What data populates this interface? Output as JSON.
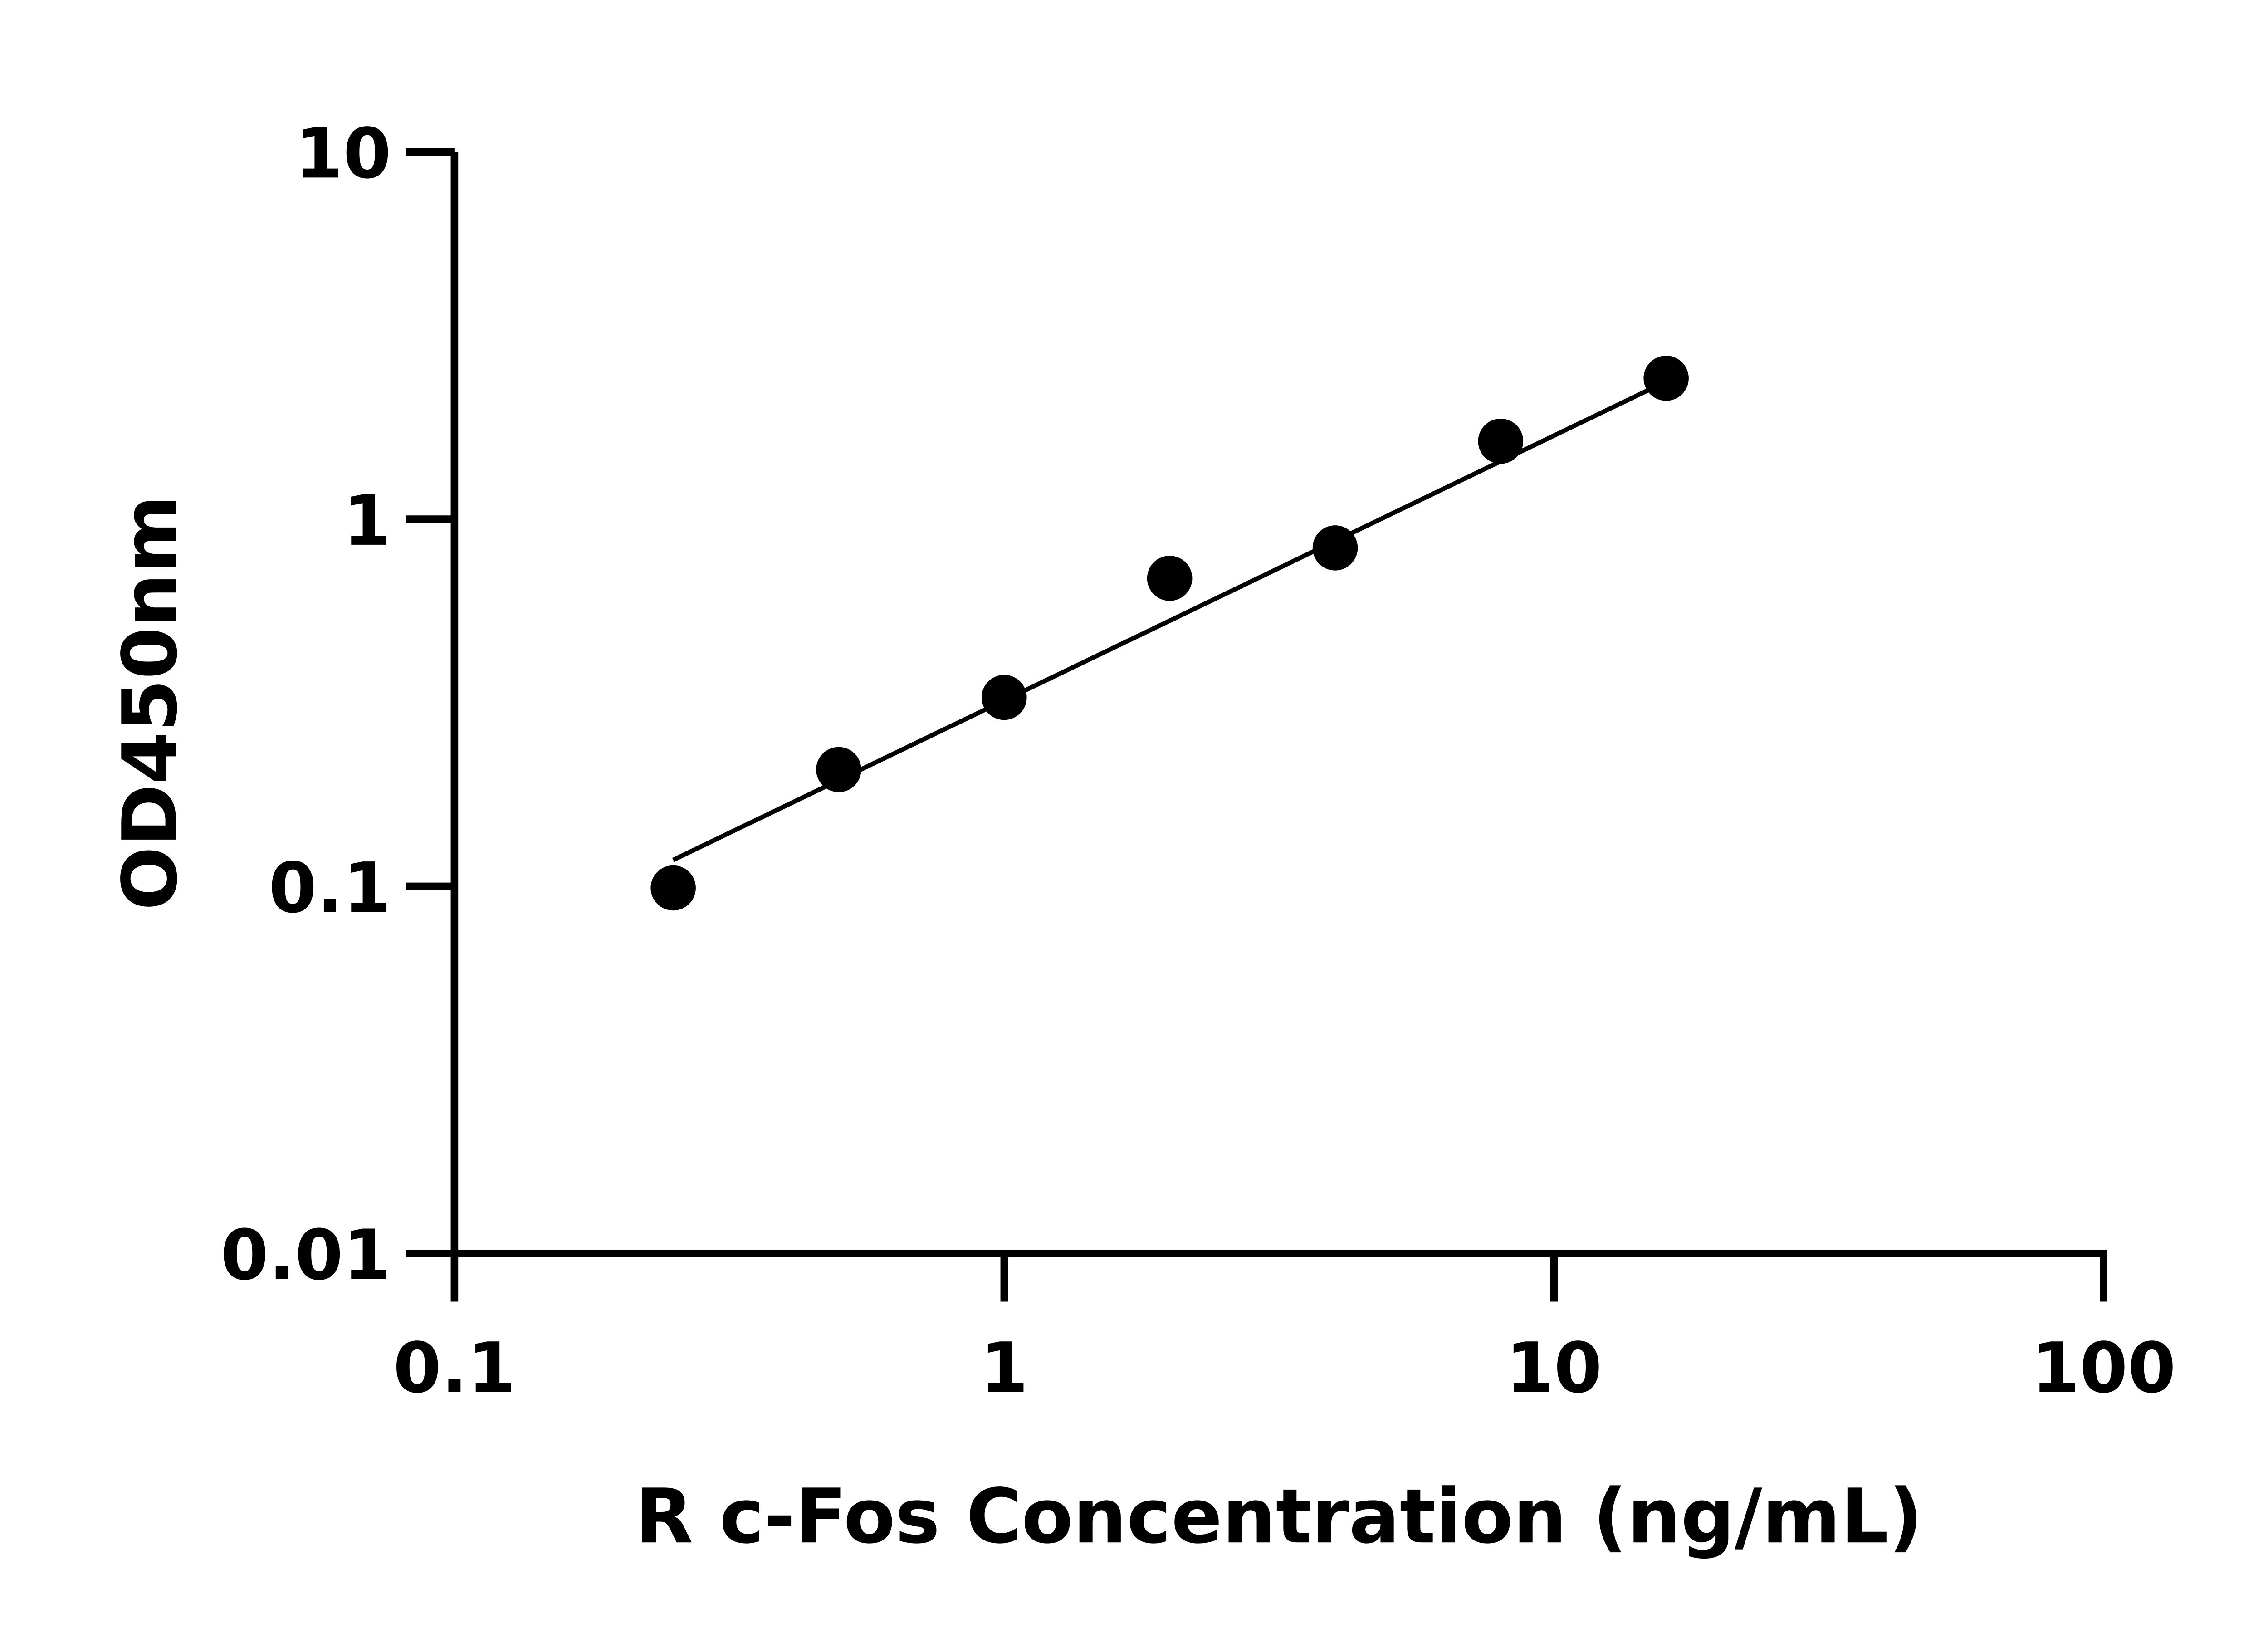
{
  "chart_data": {
    "type": "scatter",
    "title": "",
    "xlabel": "R c-Fos Concentration (ng/mL)",
    "ylabel": "OD450nm",
    "x_scale": "log",
    "y_scale": "log",
    "xlim": [
      0.1,
      100
    ],
    "ylim": [
      0.01,
      10
    ],
    "x_ticks": [
      "0.1",
      "1",
      "10",
      "100"
    ],
    "y_ticks": [
      "0.01",
      "0.1",
      "1",
      "10"
    ],
    "grid": false,
    "points": {
      "x": [
        0.25,
        0.5,
        1,
        2,
        4,
        8,
        16
      ],
      "y": [
        0.099,
        0.208,
        0.327,
        0.69,
        0.835,
        1.63,
        2.42
      ]
    },
    "fit_line": {
      "x": [
        0.25,
        16
      ],
      "y": [
        0.118,
        2.37
      ]
    },
    "colors": {
      "points": "#000000",
      "line": "#000000"
    }
  }
}
